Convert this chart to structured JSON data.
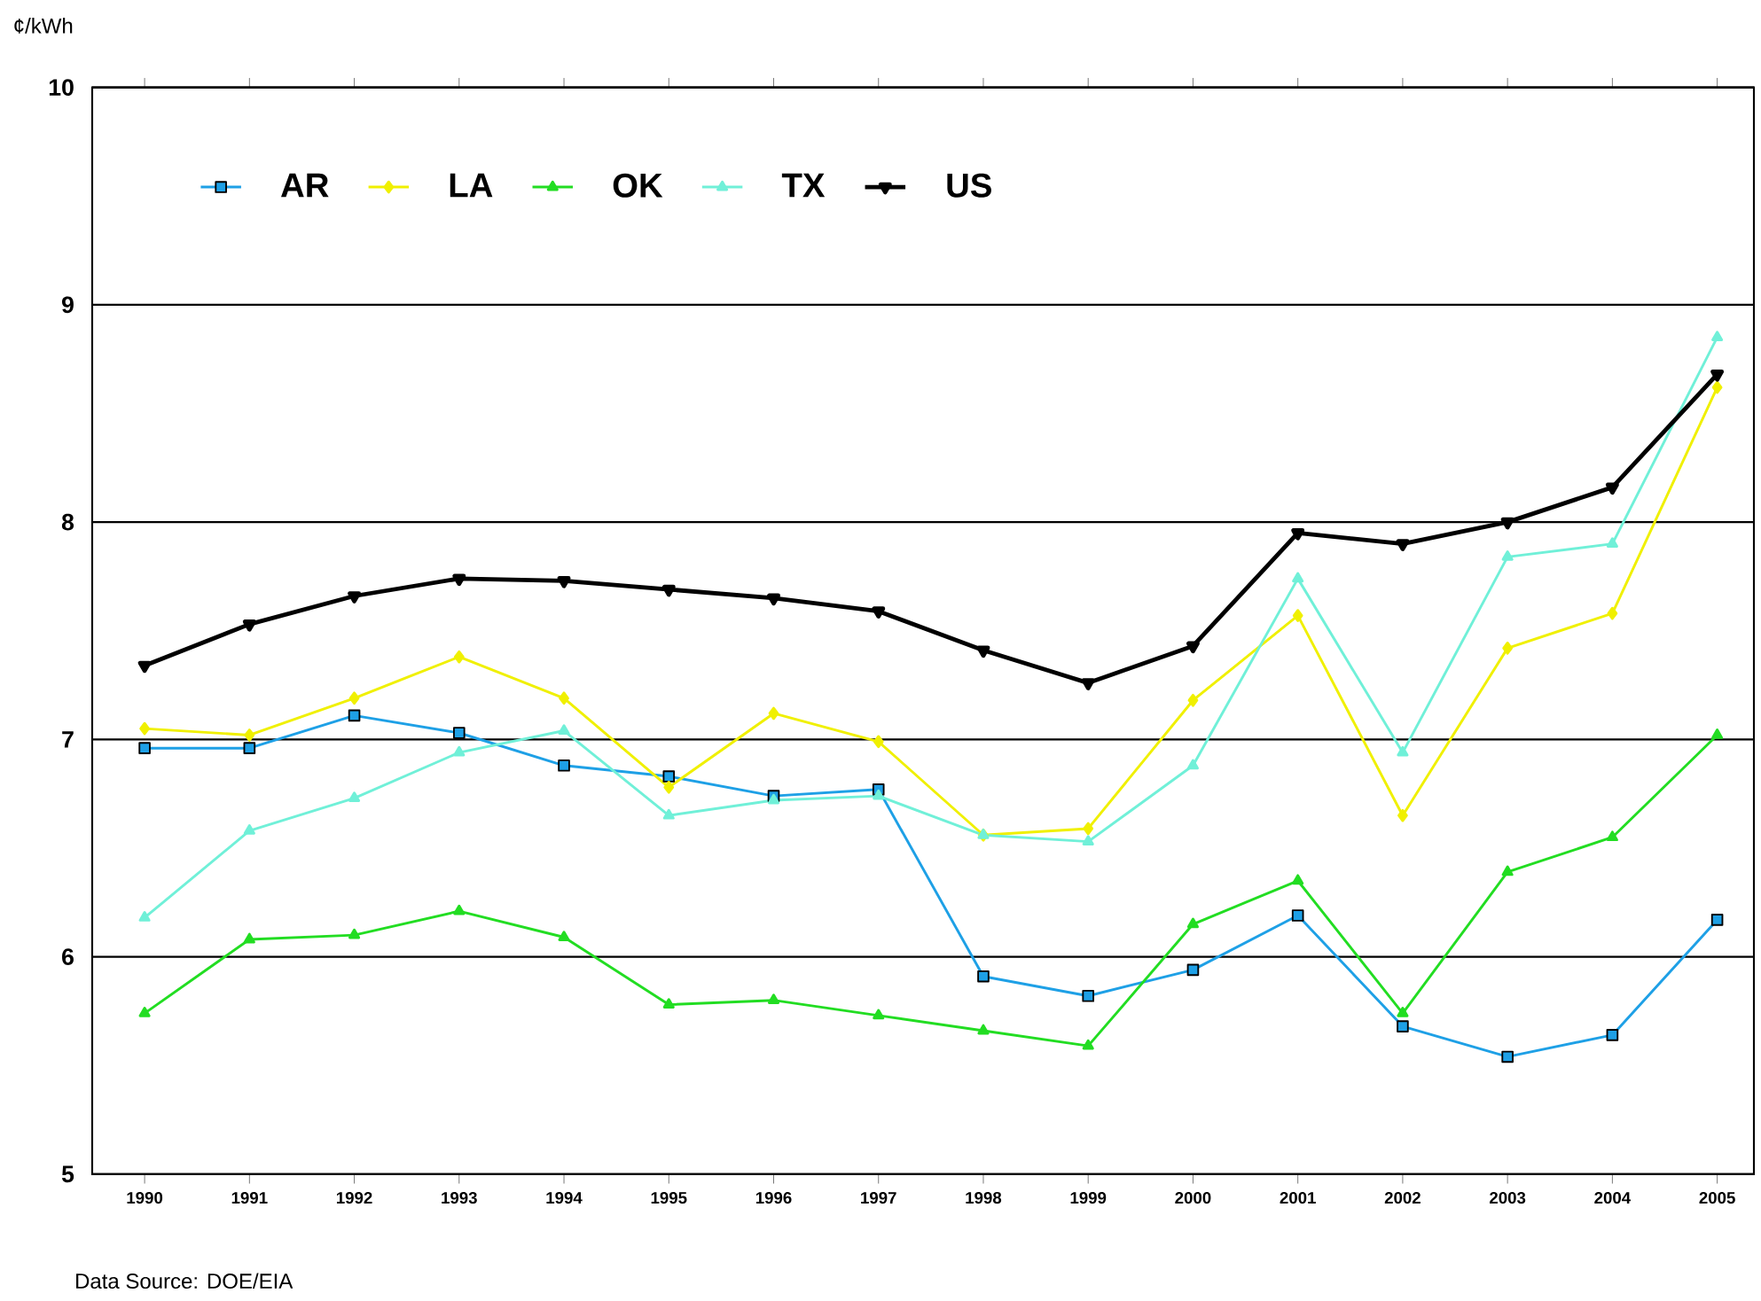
{
  "chart_data": {
    "type": "line",
    "ylabel": "¢/kWh",
    "categories": [
      "1990",
      "1991",
      "1992",
      "1993",
      "1994",
      "1995",
      "1996",
      "1997",
      "1998",
      "1999",
      "2000",
      "2001",
      "2002",
      "2003",
      "2004",
      "2005"
    ],
    "ylim": [
      5,
      10
    ],
    "yticks": [
      5,
      6,
      7,
      8,
      9,
      10
    ],
    "grid": "y",
    "legend": "top left",
    "line_style": "solid",
    "series": [
      {
        "name": "AR",
        "color": "#1ea0e6",
        "marker": "square",
        "values": [
          6.96,
          6.96,
          7.11,
          7.03,
          6.88,
          6.83,
          6.74,
          6.77,
          5.91,
          5.82,
          5.94,
          6.19,
          5.68,
          5.54,
          5.64,
          6.17
        ]
      },
      {
        "name": "LA",
        "color": "#f0f000",
        "marker": "diamond",
        "values": [
          7.05,
          7.02,
          7.19,
          7.38,
          7.19,
          6.78,
          7.12,
          6.99,
          6.56,
          6.59,
          7.18,
          7.57,
          6.65,
          7.42,
          7.58,
          8.62
        ]
      },
      {
        "name": "OK",
        "color": "#22dd22",
        "marker": "triangle",
        "values": [
          5.74,
          6.08,
          6.1,
          6.21,
          6.09,
          5.78,
          5.8,
          5.73,
          5.66,
          5.59,
          6.15,
          6.35,
          5.74,
          6.39,
          6.55,
          7.02
        ]
      },
      {
        "name": "TX",
        "color": "#70f0d8",
        "marker": "triangle",
        "values": [
          6.18,
          6.58,
          6.73,
          6.94,
          7.04,
          6.65,
          6.72,
          6.74,
          6.56,
          6.53,
          6.88,
          7.74,
          6.94,
          7.84,
          7.9,
          8.85
        ]
      },
      {
        "name": "US",
        "color": "#000000",
        "marker": "triangle-down",
        "values": [
          7.34,
          7.53,
          7.66,
          7.74,
          7.73,
          7.69,
          7.65,
          7.59,
          7.41,
          7.26,
          7.43,
          7.95,
          7.9,
          8.0,
          8.16,
          8.68
        ]
      }
    ],
    "annotations": [
      "Data Source: DOE/EIA"
    ]
  }
}
